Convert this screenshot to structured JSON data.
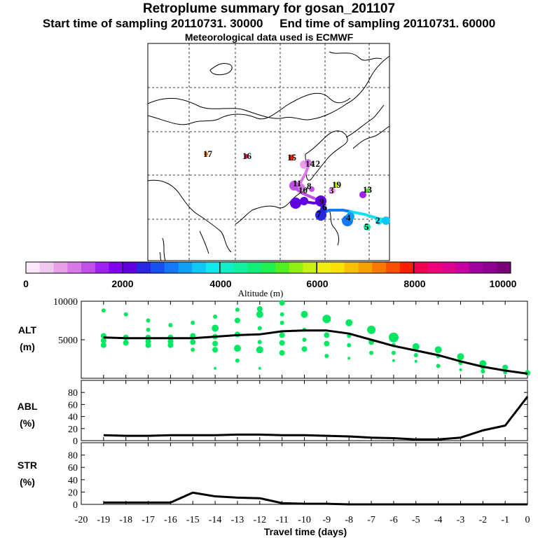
{
  "header": {
    "title": "Retroplume summary for gosan_201107",
    "subtitle_start": "Start time of sampling 20110731. 30000",
    "subtitle_end": "End time of sampling 20110731. 60000",
    "subtitle_met": "Meteorological data used is ECMWF"
  },
  "colorbar": {
    "ticks": [
      "0",
      "2000",
      "4000",
      "6000",
      "8000",
      "10000"
    ],
    "label": "Altitude (m)",
    "colors": [
      "#f8e8f8",
      "#f0c8f0",
      "#e8a0e8",
      "#d878e8",
      "#c050e8",
      "#a020f0",
      "#8000f0",
      "#6000e0",
      "#2828e0",
      "#1850f0",
      "#1478f8",
      "#10a0f8",
      "#10c8f8",
      "#10e8f0",
      "#10f0c8",
      "#10f0a0",
      "#10f078",
      "#20f050",
      "#50f020",
      "#90f010",
      "#c8f010",
      "#f0f010",
      "#f8e000",
      "#f8c000",
      "#f8a000",
      "#f87800",
      "#f85000",
      "#f82000",
      "#f00050",
      "#f00078",
      "#e00090",
      "#c800a0",
      "#a000a0",
      "#900090",
      "#780078"
    ]
  },
  "map": {
    "labels": [
      "17",
      "16",
      "15",
      "14",
      "12",
      "11",
      "19",
      "13",
      "10",
      "3",
      "8",
      "9",
      "7",
      "6",
      "4",
      "5",
      "2"
    ],
    "accent_line": "#10e0f0"
  },
  "panels": [
    {
      "name": "ALT",
      "unit": "(m)"
    },
    {
      "name": "ABL",
      "unit": "(%)"
    },
    {
      "name": "STR",
      "unit": "(%)"
    }
  ],
  "xaxis": {
    "label": "Travel time (days)"
  },
  "chart_data": [
    {
      "type": "line",
      "title": "ALT",
      "ylabel": "ALT (m)",
      "xlabel": "Travel time (days)",
      "xlim": [
        -20,
        0
      ],
      "ylim": [
        0,
        10000
      ],
      "yticks": [
        10000,
        5000
      ],
      "x": [
        -19,
        -18,
        -17,
        -16,
        -15,
        -14,
        -13,
        -12,
        -11,
        -10,
        -9,
        -8,
        -7,
        -6,
        -5,
        -4,
        -3,
        -2,
        -1,
        0
      ],
      "series": [
        {
          "name": "median",
          "values": [
            5300,
            5200,
            5200,
            5200,
            5200,
            5400,
            5600,
            5700,
            6100,
            6200,
            6200,
            5800,
            5000,
            4200,
            3600,
            3000,
            2200,
            1500,
            1000,
            600
          ]
        }
      ],
      "scatter": {
        "color": "#00e860",
        "points": [
          [
            -19,
            8800,
            3
          ],
          [
            -19,
            5500,
            4
          ],
          [
            -19,
            4900,
            4
          ],
          [
            -19,
            4300,
            4
          ],
          [
            -18,
            8300,
            3
          ],
          [
            -18,
            5300,
            4
          ],
          [
            -18,
            4600,
            4
          ],
          [
            -17,
            7500,
            3
          ],
          [
            -17,
            6300,
            3
          ],
          [
            -17,
            5300,
            4
          ],
          [
            -17,
            4800,
            4
          ],
          [
            -17,
            4300,
            4
          ],
          [
            -16,
            6900,
            3
          ],
          [
            -16,
            5300,
            4
          ],
          [
            -16,
            4800,
            4
          ],
          [
            -16,
            4300,
            4
          ],
          [
            -15,
            7200,
            3
          ],
          [
            -15,
            5500,
            4
          ],
          [
            -15,
            4700,
            4
          ],
          [
            -15,
            3700,
            3
          ],
          [
            -14,
            8000,
            3
          ],
          [
            -14,
            6500,
            5
          ],
          [
            -14,
            5400,
            4
          ],
          [
            -14,
            4500,
            4
          ],
          [
            -14,
            3700,
            4
          ],
          [
            -14,
            1300,
            2
          ],
          [
            -13,
            8900,
            3
          ],
          [
            -13,
            7500,
            4
          ],
          [
            -13,
            5700,
            4
          ],
          [
            -13,
            3900,
            5
          ],
          [
            -13,
            2300,
            3
          ],
          [
            -12,
            9000,
            4
          ],
          [
            -12,
            8300,
            5
          ],
          [
            -12,
            6500,
            3
          ],
          [
            -12,
            4700,
            3
          ],
          [
            -12,
            3700,
            5
          ],
          [
            -12,
            1300,
            2
          ],
          [
            -11,
            9800,
            4
          ],
          [
            -11,
            8300,
            3
          ],
          [
            -11,
            7200,
            3
          ],
          [
            -11,
            5600,
            4
          ],
          [
            -11,
            4600,
            4
          ],
          [
            -11,
            3300,
            4
          ],
          [
            -10,
            8300,
            5
          ],
          [
            -10,
            6300,
            3
          ],
          [
            -10,
            5000,
            3
          ],
          [
            -10,
            3800,
            4
          ],
          [
            -9,
            7700,
            6
          ],
          [
            -9,
            5600,
            4
          ],
          [
            -9,
            4500,
            4
          ],
          [
            -9,
            2900,
            3
          ],
          [
            -8,
            7200,
            5
          ],
          [
            -8,
            5500,
            3
          ],
          [
            -8,
            4300,
            3
          ],
          [
            -8,
            2600,
            2
          ],
          [
            -7,
            6300,
            6
          ],
          [
            -7,
            4700,
            4
          ],
          [
            -7,
            3300,
            3
          ],
          [
            -6,
            5300,
            7
          ],
          [
            -6,
            4300,
            3
          ],
          [
            -6,
            3300,
            3
          ],
          [
            -6,
            2300,
            2
          ],
          [
            -5,
            4100,
            5
          ],
          [
            -5,
            3000,
            3
          ],
          [
            -5,
            2200,
            2
          ],
          [
            -4,
            3700,
            5
          ],
          [
            -4,
            2900,
            3
          ],
          [
            -4,
            1600,
            3
          ],
          [
            -3,
            2800,
            5
          ],
          [
            -3,
            2000,
            3
          ],
          [
            -3,
            1100,
            2
          ],
          [
            -2,
            1900,
            5
          ],
          [
            -2,
            1400,
            3
          ],
          [
            -2,
            900,
            3
          ],
          [
            -1,
            1400,
            4
          ],
          [
            -1,
            800,
            3
          ],
          [
            0,
            700,
            4
          ]
        ]
      }
    },
    {
      "type": "line",
      "title": "ABL",
      "ylabel": "ABL (%)",
      "xlabel": "Travel time (days)",
      "xlim": [
        -20,
        0
      ],
      "ylim": [
        0,
        100
      ],
      "yticks": [
        0,
        20,
        40,
        60,
        80
      ],
      "x": [
        -19,
        -18,
        -17,
        -16,
        -15,
        -14,
        -13,
        -12,
        -11,
        -10,
        -9,
        -8,
        -7,
        -6,
        -5,
        -4,
        -3,
        -2,
        -1,
        0
      ],
      "values": [
        9,
        8,
        8,
        9,
        9,
        9,
        10,
        10,
        9,
        9,
        8,
        7,
        5,
        4,
        2,
        2,
        5,
        17,
        25,
        73
      ]
    },
    {
      "type": "line",
      "title": "STR",
      "ylabel": "STR (%)",
      "xlabel": "Travel time (days)",
      "xlim": [
        -20,
        0
      ],
      "ylim": [
        0,
        100
      ],
      "yticks": [
        0,
        20,
        40,
        60,
        80
      ],
      "x": [
        -19,
        -18,
        -17,
        -16,
        -15,
        -14,
        -13,
        -12,
        -11,
        -10,
        -9,
        -8,
        -7,
        -6,
        -5,
        -4,
        -3,
        -2,
        -1,
        0
      ],
      "values": [
        3,
        3,
        3,
        3,
        19,
        13,
        11,
        10,
        2,
        1,
        1,
        0,
        0,
        0,
        0,
        0,
        0,
        0,
        0,
        0
      ],
      "xticks": [
        "-20",
        "-19",
        "-18",
        "-17",
        "-16",
        "-15",
        "-14",
        "-13",
        "-12",
        "-11",
        "-10",
        "-9",
        "-8",
        "-7",
        "-6",
        "-5",
        "-4",
        "-3",
        "-2",
        "-1",
        "0"
      ]
    }
  ]
}
